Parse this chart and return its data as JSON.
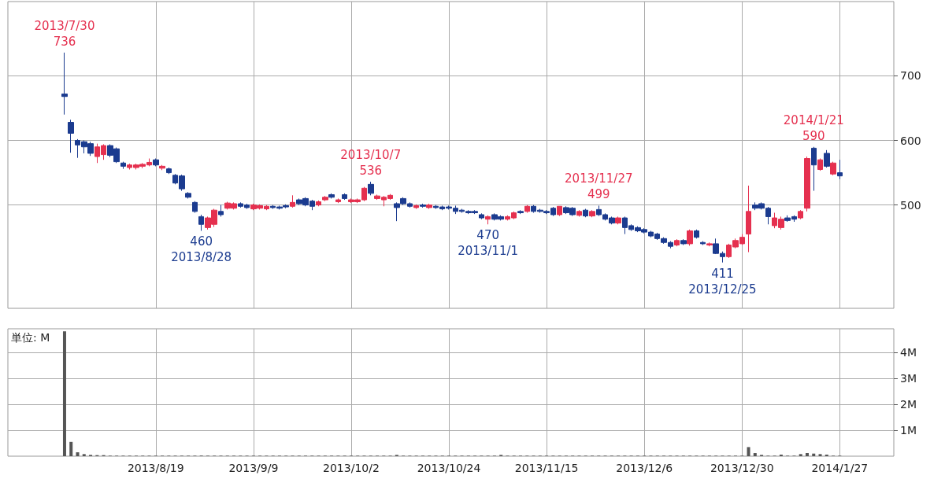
{
  "chart_data": [
    {
      "type": "candlestick",
      "categories": [
        null,
        null,
        null,
        null,
        null,
        null,
        null,
        null,
        null,
        null,
        null,
        null,
        null,
        null,
        "2013/8/19",
        null,
        null,
        null,
        null,
        null,
        null,
        null,
        null,
        null,
        null,
        null,
        null,
        null,
        null,
        "2013/9/9",
        null,
        null,
        null,
        null,
        null,
        null,
        null,
        null,
        null,
        null,
        null,
        null,
        null,
        null,
        "2013/10/2",
        null,
        null,
        null,
        null,
        null,
        null,
        null,
        null,
        null,
        null,
        null,
        null,
        null,
        null,
        "2013/10/24",
        null,
        null,
        null,
        null,
        null,
        null,
        null,
        null,
        null,
        null,
        null,
        null,
        null,
        null,
        "2013/11/15",
        null,
        null,
        null,
        null,
        null,
        null,
        null,
        null,
        null,
        null,
        null,
        null,
        null,
        null,
        "2013/12/6",
        null,
        null,
        null,
        null,
        null,
        null,
        null,
        null,
        null,
        null,
        null,
        null,
        null,
        null,
        "2013/12/30",
        null,
        null,
        null,
        null,
        null,
        null,
        null,
        null,
        null,
        null,
        null,
        null,
        null,
        null,
        "2014/1/27"
      ],
      "ohlc": [
        [
          672,
          736,
          640,
          668
        ],
        [
          628,
          632,
          581,
          611
        ],
        [
          600,
          602,
          573,
          593
        ],
        [
          598,
          600,
          580,
          590
        ],
        [
          595,
          598,
          576,
          580
        ],
        [
          575,
          595,
          565,
          590
        ],
        [
          578,
          594,
          570,
          592
        ],
        [
          592,
          594,
          574,
          577
        ],
        [
          587,
          589,
          565,
          567
        ],
        [
          565,
          567,
          556,
          560
        ],
        [
          558,
          564,
          555,
          562
        ],
        [
          558,
          564,
          555,
          562
        ],
        [
          560,
          565,
          557,
          563
        ],
        [
          562,
          572,
          560,
          566
        ],
        [
          570,
          572,
          560,
          562
        ],
        [
          557,
          562,
          554,
          560
        ],
        [
          556,
          558,
          548,
          550
        ],
        [
          546,
          548,
          532,
          534
        ],
        [
          545,
          547,
          522,
          525
        ],
        [
          518,
          520,
          510,
          512
        ],
        [
          504,
          506,
          488,
          490
        ],
        [
          482,
          485,
          460,
          470
        ],
        [
          465,
          482,
          462,
          480
        ],
        [
          470,
          494,
          466,
          492
        ],
        [
          490,
          500,
          482,
          485
        ],
        [
          495,
          505,
          493,
          503
        ],
        [
          495,
          504,
          493,
          502
        ],
        [
          502,
          504,
          496,
          498
        ],
        [
          500,
          502,
          494,
          496
        ],
        [
          494,
          502,
          492,
          500
        ],
        [
          495,
          501,
          493,
          499
        ],
        [
          494,
          500,
          492,
          498
        ],
        [
          498,
          500,
          494,
          496
        ],
        [
          497,
          499,
          493,
          495
        ],
        [
          499,
          501,
          495,
          497
        ],
        [
          498,
          515,
          496,
          504
        ],
        [
          508,
          510,
          500,
          502
        ],
        [
          510,
          512,
          498,
          500
        ],
        [
          506,
          508,
          492,
          498
        ],
        [
          500,
          507,
          498,
          505
        ],
        [
          508,
          514,
          506,
          512
        ],
        [
          516,
          518,
          510,
          512
        ],
        [
          505,
          510,
          503,
          508
        ],
        [
          516,
          518,
          508,
          510
        ],
        [
          505,
          510,
          503,
          508
        ],
        [
          505,
          510,
          503,
          508
        ],
        [
          508,
          528,
          506,
          526
        ],
        [
          532,
          536,
          515,
          518
        ],
        [
          510,
          516,
          508,
          514
        ],
        [
          508,
          514,
          498,
          512
        ],
        [
          510,
          517,
          508,
          515
        ],
        [
          502,
          504,
          475,
          496
        ],
        [
          510,
          512,
          500,
          502
        ],
        [
          502,
          504,
          496,
          498
        ],
        [
          496,
          501,
          494,
          499
        ],
        [
          500,
          502,
          496,
          498
        ],
        [
          496,
          502,
          494,
          500
        ],
        [
          498,
          500,
          494,
          496
        ],
        [
          497,
          499,
          492,
          494
        ],
        [
          497,
          499,
          493,
          495
        ],
        [
          495,
          499,
          486,
          490
        ],
        [
          492,
          494,
          488,
          490
        ],
        [
          490,
          492,
          486,
          488
        ],
        [
          490,
          492,
          486,
          488
        ],
        [
          485,
          487,
          478,
          480
        ],
        [
          478,
          484,
          470,
          482
        ],
        [
          485,
          487,
          476,
          478
        ],
        [
          482,
          484,
          476,
          478
        ],
        [
          478,
          484,
          476,
          482
        ],
        [
          480,
          490,
          478,
          488
        ],
        [
          490,
          492,
          486,
          488
        ],
        [
          490,
          500,
          488,
          498
        ],
        [
          498,
          500,
          488,
          490
        ],
        [
          492,
          494,
          488,
          490
        ],
        [
          490,
          492,
          486,
          488
        ],
        [
          495,
          497,
          483,
          485
        ],
        [
          485,
          498,
          483,
          498
        ],
        [
          496,
          498,
          486,
          488
        ],
        [
          495,
          497,
          483,
          485
        ],
        [
          484,
          492,
          482,
          490
        ],
        [
          492,
          494,
          481,
          483
        ],
        [
          483,
          492,
          481,
          490
        ],
        [
          493,
          499,
          483,
          485
        ],
        [
          485,
          487,
          476,
          478
        ],
        [
          480,
          482,
          470,
          472
        ],
        [
          472,
          482,
          470,
          480
        ],
        [
          480,
          482,
          455,
          465
        ],
        [
          468,
          470,
          460,
          462
        ],
        [
          465,
          467,
          458,
          460
        ],
        [
          462,
          464,
          456,
          458
        ],
        [
          458,
          460,
          450,
          452
        ],
        [
          455,
          457,
          446,
          448
        ],
        [
          448,
          450,
          440,
          442
        ],
        [
          442,
          444,
          433,
          436
        ],
        [
          438,
          447,
          436,
          445
        ],
        [
          445,
          447,
          438,
          440
        ],
        [
          440,
          462,
          437,
          460
        ],
        [
          460,
          462,
          448,
          450
        ],
        [
          442,
          444,
          438,
          440
        ],
        [
          438,
          442,
          436,
          440
        ],
        [
          440,
          448,
          424,
          425
        ],
        [
          425,
          428,
          411,
          420
        ],
        [
          420,
          440,
          418,
          438
        ],
        [
          435,
          448,
          433,
          445
        ],
        [
          440,
          455,
          438,
          450
        ],
        [
          455,
          530,
          427,
          490
        ],
        [
          500,
          504,
          492,
          495
        ],
        [
          502,
          504,
          493,
          495
        ],
        [
          495,
          497,
          470,
          482
        ],
        [
          468,
          488,
          464,
          480
        ],
        [
          465,
          482,
          462,
          478
        ],
        [
          480,
          484,
          474,
          476
        ],
        [
          482,
          484,
          474,
          478
        ],
        [
          480,
          492,
          478,
          490
        ],
        [
          495,
          575,
          490,
          572
        ],
        [
          588,
          590,
          522,
          562
        ],
        [
          555,
          572,
          553,
          570
        ],
        [
          580,
          585,
          558,
          560
        ],
        [
          548,
          567,
          546,
          565
        ],
        [
          550,
          570,
          540,
          545
        ]
      ],
      "colors": [
        "#1b3b8f",
        "#1b3b8f",
        "#1b3b8f",
        "#1b3b8f",
        "#1b3b8f",
        "#e5304f",
        "#e5304f",
        "#1b3b8f",
        "#1b3b8f",
        "#1b3b8f",
        "#e5304f",
        "#e5304f",
        "#e5304f",
        "#e5304f",
        "#1b3b8f",
        "#e5304f",
        "#1b3b8f",
        "#1b3b8f",
        "#1b3b8f",
        "#1b3b8f",
        "#1b3b8f",
        "#1b3b8f",
        "#e5304f",
        "#e5304f",
        "#1b3b8f",
        "#e5304f",
        "#e5304f",
        "#1b3b8f",
        "#1b3b8f",
        "#e5304f",
        "#e5304f",
        "#e5304f",
        "#1b3b8f",
        "#1b3b8f",
        "#1b3b8f",
        "#e5304f",
        "#1b3b8f",
        "#1b3b8f",
        "#1b3b8f",
        "#e5304f",
        "#e5304f",
        "#1b3b8f",
        "#e5304f",
        "#1b3b8f",
        "#e5304f",
        "#e5304f",
        "#e5304f",
        "#1b3b8f",
        "#e5304f",
        "#e5304f",
        "#e5304f",
        "#1b3b8f",
        "#1b3b8f",
        "#1b3b8f",
        "#e5304f",
        "#1b3b8f",
        "#e5304f",
        "#1b3b8f",
        "#1b3b8f",
        "#1b3b8f",
        "#1b3b8f",
        "#1b3b8f",
        "#1b3b8f",
        "#1b3b8f",
        "#1b3b8f",
        "#e5304f",
        "#1b3b8f",
        "#1b3b8f",
        "#e5304f",
        "#e5304f",
        "#1b3b8f",
        "#e5304f",
        "#1b3b8f",
        "#1b3b8f",
        "#1b3b8f",
        "#1b3b8f",
        "#e5304f",
        "#1b3b8f",
        "#1b3b8f",
        "#e5304f",
        "#1b3b8f",
        "#e5304f",
        "#1b3b8f",
        "#1b3b8f",
        "#1b3b8f",
        "#e5304f",
        "#1b3b8f",
        "#1b3b8f",
        "#1b3b8f",
        "#1b3b8f",
        "#1b3b8f",
        "#1b3b8f",
        "#1b3b8f",
        "#1b3b8f",
        "#e5304f",
        "#1b3b8f",
        "#e5304f",
        "#1b3b8f",
        "#1b3b8f",
        "#e5304f",
        "#1b3b8f",
        "#1b3b8f",
        "#e5304f",
        "#e5304f",
        "#e5304f",
        "#e5304f",
        "#1b3b8f",
        "#1b3b8f",
        "#1b3b8f",
        "#e5304f",
        "#e5304f",
        "#1b3b8f",
        "#1b3b8f",
        "#e5304f",
        "#e5304f",
        "#1b3b8f",
        "#e5304f",
        "#1b3b8f",
        "#e5304f",
        "#1b3b8f"
      ],
      "ylim": [
        340,
        815
      ],
      "yticks": [
        500,
        600,
        700
      ],
      "grid": true,
      "tick_labels": "y",
      "annotations": [
        {
          "text": "2013/7/30\n736",
          "y": 736
        },
        {
          "text": "460\n2013/8/28",
          "y": 460
        },
        {
          "text": "2013/10/7\n536",
          "y": 536
        },
        {
          "text": "470\n2013/11/1",
          "y": 470
        },
        {
          "text": "2013/11/27\n499",
          "y": 499
        },
        {
          "text": "411\n2013/12/25",
          "y": 411
        },
        {
          "text": "2014/1/21\n590",
          "y": 590
        }
      ]
    },
    {
      "type": "bar",
      "categories": [
        null,
        null,
        null,
        null,
        null,
        null,
        null,
        null,
        null,
        null,
        null,
        null,
        null,
        null,
        "2013/8/19",
        null,
        null,
        null,
        null,
        null,
        null,
        null,
        null,
        null,
        null,
        null,
        null,
        null,
        null,
        "2013/9/9",
        null,
        null,
        null,
        null,
        null,
        null,
        null,
        null,
        null,
        null,
        null,
        null,
        null,
        null,
        "2013/10/2",
        null,
        null,
        null,
        null,
        null,
        null,
        null,
        null,
        null,
        null,
        null,
        null,
        null,
        null,
        "2013/10/24",
        null,
        null,
        null,
        null,
        null,
        null,
        null,
        null,
        null,
        null,
        null,
        null,
        null,
        null,
        "2013/11/15",
        null,
        null,
        null,
        null,
        null,
        null,
        null,
        null,
        null,
        null,
        null,
        null,
        null,
        null,
        "2013/12/6",
        null,
        null,
        null,
        null,
        null,
        null,
        null,
        null,
        null,
        null,
        null,
        null,
        null,
        null,
        "2013/12/30",
        null,
        null,
        null,
        null,
        null,
        null,
        null,
        null,
        null,
        null,
        null,
        null,
        null,
        null,
        "2014/1/27"
      ],
      "values": [
        4.8,
        0.55,
        0.15,
        0.08,
        0.05,
        0.04,
        0.04,
        0.02,
        0.02,
        0.02,
        0.02,
        0.02,
        0.02,
        0.02,
        0.02,
        0.02,
        0.02,
        0.02,
        0.02,
        0.02,
        0.02,
        0.02,
        0.02,
        0.02,
        0.02,
        0.02,
        0.02,
        0.02,
        0.02,
        0.02,
        0.02,
        0.02,
        0.02,
        0.02,
        0.02,
        0.02,
        0.02,
        0.02,
        0.02,
        0.02,
        0.02,
        0.02,
        0.02,
        0.02,
        0.02,
        0.02,
        0.02,
        0.02,
        0.02,
        0.02,
        0.02,
        0.05,
        0.02,
        0.02,
        0.02,
        0.02,
        0.02,
        0.02,
        0.02,
        0.02,
        0.02,
        0.02,
        0.02,
        0.02,
        0.02,
        0.02,
        0.02,
        0.05,
        0.02,
        0.02,
        0.02,
        0.02,
        0.02,
        0.02,
        0.02,
        0.02,
        0.02,
        0.02,
        0.02,
        0.02,
        0.02,
        0.02,
        0.02,
        0.02,
        0.02,
        0.02,
        0.02,
        0.02,
        0.02,
        0.02,
        0.02,
        0.02,
        0.02,
        0.02,
        0.02,
        0.02,
        0.02,
        0.02,
        0.02,
        0.02,
        0.02,
        0.02,
        0.02,
        0.02,
        0.02,
        0.35,
        0.12,
        0.05,
        0.02,
        0.02,
        0.06,
        0.02,
        0.02,
        0.08,
        0.12,
        0.1,
        0.08,
        0.06,
        0.02,
        0.02
      ],
      "color": "#555555",
      "ylim": [
        0,
        4.9
      ],
      "yticks": [
        {
          "value": 1,
          "label": "1M"
        },
        {
          "value": 2,
          "label": "2M"
        },
        {
          "value": 3,
          "label": "3M"
        },
        {
          "value": 4,
          "label": "4M"
        }
      ],
      "grid": true,
      "annotations": [
        "単位: M"
      ]
    }
  ]
}
